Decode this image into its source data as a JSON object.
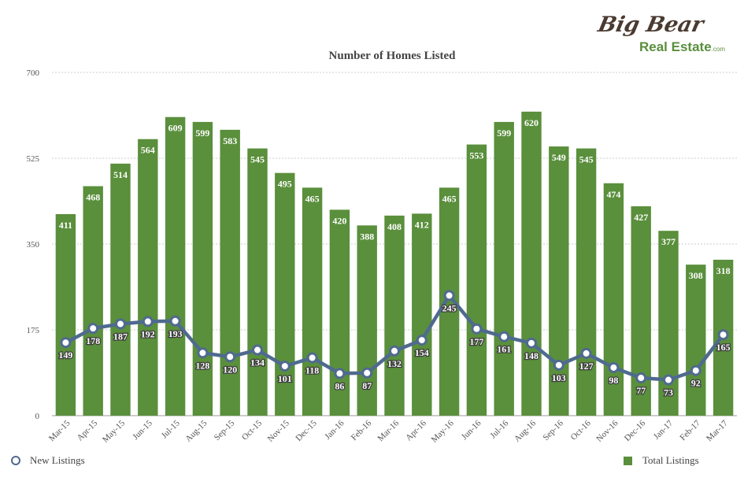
{
  "logo": {
    "top_text": "Big Bear",
    "bottom_text": "Real Estate",
    "suffix": ".com"
  },
  "colors": {
    "bars": "#5a8f3c",
    "line": "#4f6a8f",
    "grid": "#cccccc",
    "text": "#444444"
  },
  "chart_data": {
    "type": "bar",
    "title": "Number of Homes Listed",
    "xlabel": "",
    "ylabel": "",
    "ylim": [
      0,
      700
    ],
    "yticks": [
      0,
      175,
      350,
      525,
      700
    ],
    "grid": true,
    "categories": [
      "Mar-15",
      "Apr-15",
      "May-15",
      "Jun-15",
      "Jul-15",
      "Aug-15",
      "Sep-15",
      "Oct-15",
      "Nov-15",
      "Dec-15",
      "Jan-16",
      "Feb-16",
      "Mar-16",
      "Apr-16",
      "May-16",
      "Jun-16",
      "Jul-16",
      "Aug-16",
      "Sep-16",
      "Oct-16",
      "Nov-16",
      "Dec-16",
      "Jan-17",
      "Feb-17",
      "Mar-17"
    ],
    "series": [
      {
        "name": "Total Listings",
        "type": "bar",
        "values": [
          411,
          468,
          514,
          564,
          609,
          599,
          583,
          545,
          495,
          465,
          420,
          388,
          408,
          412,
          465,
          553,
          599,
          620,
          549,
          545,
          474,
          427,
          377,
          308,
          318
        ]
      },
      {
        "name": "New Listings",
        "type": "line",
        "values": [
          149,
          178,
          187,
          192,
          193,
          128,
          120,
          134,
          101,
          118,
          86,
          87,
          132,
          154,
          245,
          177,
          161,
          148,
          103,
          127,
          98,
          77,
          73,
          92,
          165
        ]
      }
    ],
    "legend": "bottom"
  }
}
